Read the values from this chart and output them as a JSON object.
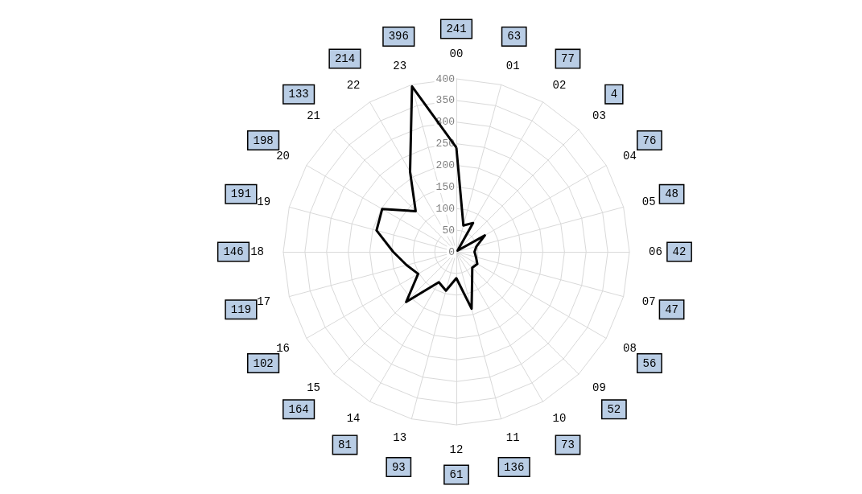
{
  "chart_data": {
    "type": "radar",
    "categories": [
      "00",
      "01",
      "02",
      "03",
      "04",
      "05",
      "06",
      "07",
      "08",
      "09",
      "10",
      "11",
      "12",
      "13",
      "14",
      "15",
      "16",
      "17",
      "18",
      "19",
      "20",
      "21",
      "22",
      "23"
    ],
    "series": [
      {
        "color": "#000000",
        "values": [
          241,
          63,
          77,
          4,
          76,
          48,
          42,
          47,
          56,
          52,
          73,
          136,
          61,
          93,
          81,
          164,
          102,
          119,
          146,
          191,
          198,
          133,
          214,
          396
        ]
      }
    ],
    "annotations": [
      "241",
      "63",
      "77",
      "4",
      "76",
      "48",
      "42",
      "47",
      "56",
      "52",
      "73",
      "136",
      "61",
      "93",
      "81",
      "164",
      "102",
      "119",
      "146",
      "191",
      "198",
      "133",
      "214",
      "396"
    ],
    "ylim": [
      0,
      400
    ],
    "yticks": [
      0,
      50,
      100,
      150,
      200,
      250,
      300,
      350,
      400
    ],
    "grid": true,
    "marker": "none"
  }
}
